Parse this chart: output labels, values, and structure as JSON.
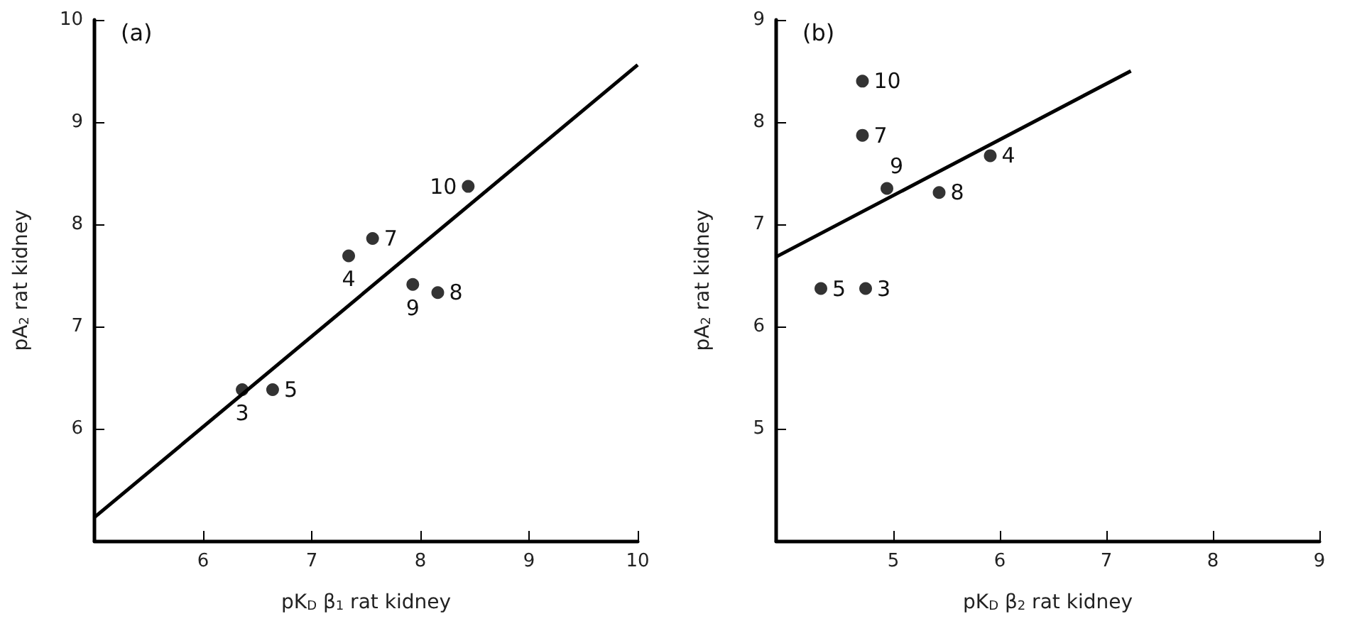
{
  "chart_data": [
    {
      "type": "scatter",
      "title": "(a)",
      "xlabel": "pK$_{D}$ β$_{1}$ rat kidney",
      "ylabel": "pA$_{2}$ rat kidney",
      "xlim": [
        5,
        10
      ],
      "ylim": [
        4.9,
        10
      ],
      "xticks": [
        6,
        7,
        8,
        9,
        10
      ],
      "yticks": [
        6,
        7,
        8,
        9,
        10
      ],
      "grid": false,
      "marker": "circle",
      "series": [
        {
          "color": "#000000",
          "x": [
            6.36,
            7.34,
            6.64,
            7.56,
            8.16,
            7.93,
            8.44
          ],
          "values": [
            6.38,
            7.69,
            6.38,
            7.86,
            7.33,
            7.41,
            8.37
          ]
        },
        {
          "type": "line",
          "color": "#000000",
          "marker": "none",
          "line_style": "solid",
          "x": [
            5,
            10
          ],
          "values": [
            5.13,
            9.56
          ]
        }
      ],
      "annotations": [
        {
          "text": "3",
          "x": 6.36,
          "y": 6.38
        },
        {
          "text": "4",
          "x": 7.34,
          "y": 7.69
        },
        {
          "text": "5",
          "x": 6.64,
          "y": 6.38
        },
        {
          "text": "7",
          "x": 7.56,
          "y": 7.86
        },
        {
          "text": "8",
          "x": 8.16,
          "y": 7.33
        },
        {
          "text": "9",
          "x": 7.93,
          "y": 7.41
        },
        {
          "text": "10",
          "x": 8.44,
          "y": 8.37
        }
      ]
    },
    {
      "type": "scatter",
      "title": "(b)",
      "xlabel": "pK$_{D}$ β$_{2}$ rat kidney",
      "ylabel": "pA$_{2}$ rat kidney",
      "xlim": [
        3.9,
        9
      ],
      "ylim": [
        3.9,
        9
      ],
      "xticks": [
        5,
        6,
        7,
        8,
        9
      ],
      "yticks": [
        5,
        6,
        7,
        8,
        9
      ],
      "grid": false,
      "marker": "circle",
      "series": [
        {
          "color": "#000000",
          "x": [
            4.74,
            5.91,
            4.32,
            4.71,
            5.43,
            4.94,
            4.71
          ],
          "values": [
            6.37,
            7.67,
            6.37,
            7.87,
            7.31,
            7.35,
            8.4
          ]
        },
        {
          "type": "line",
          "color": "#000000",
          "marker": "none",
          "line_style": "solid",
          "x": [
            3.9,
            7.23
          ],
          "values": [
            6.68,
            8.5
          ]
        }
      ],
      "annotations": [
        {
          "text": "3",
          "x": 4.74,
          "y": 6.37
        },
        {
          "text": "4",
          "x": 5.91,
          "y": 7.67
        },
        {
          "text": "5",
          "x": 4.32,
          "y": 6.37
        },
        {
          "text": "7",
          "x": 4.71,
          "y": 7.87
        },
        {
          "text": "8",
          "x": 5.43,
          "y": 7.31
        },
        {
          "text": "9",
          "x": 4.94,
          "y": 7.35
        },
        {
          "text": "10",
          "x": 4.71,
          "y": 8.4
        }
      ]
    }
  ]
}
